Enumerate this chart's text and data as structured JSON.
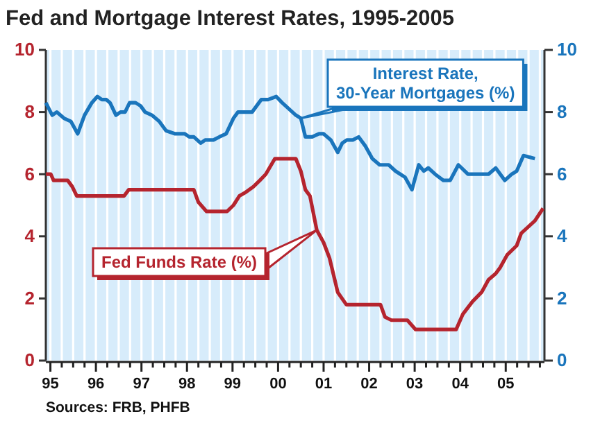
{
  "chart_data": {
    "type": "line",
    "title": "Fed and Mortgage Interest Rates, 1995-2005",
    "annotations": [
      "Sources: FRB, PHFB"
    ],
    "xlim": [
      1994.9,
      2005.85
    ],
    "ylim": [
      0,
      10
    ],
    "y2lim": [
      0,
      10
    ],
    "xticks": [
      {
        "value": 1995,
        "label": "95"
      },
      {
        "value": 1995.25,
        "label": null
      },
      {
        "value": 1995.5,
        "label": null
      },
      {
        "value": 1995.75,
        "label": null
      },
      {
        "value": 1996,
        "label": "96"
      },
      {
        "value": 1996.25,
        "label": null
      },
      {
        "value": 1996.5,
        "label": null
      },
      {
        "value": 1996.75,
        "label": null
      },
      {
        "value": 1997,
        "label": "97"
      },
      {
        "value": 1997.25,
        "label": null
      },
      {
        "value": 1997.5,
        "label": null
      },
      {
        "value": 1997.75,
        "label": null
      },
      {
        "value": 1998,
        "label": "98"
      },
      {
        "value": 1998.25,
        "label": null
      },
      {
        "value": 1998.5,
        "label": null
      },
      {
        "value": 1998.75,
        "label": null
      },
      {
        "value": 1999,
        "label": "99"
      },
      {
        "value": 1999.25,
        "label": null
      },
      {
        "value": 1999.5,
        "label": null
      },
      {
        "value": 1999.75,
        "label": null
      },
      {
        "value": 2000,
        "label": "00"
      },
      {
        "value": 2000.25,
        "label": null
      },
      {
        "value": 2000.5,
        "label": null
      },
      {
        "value": 2000.75,
        "label": null
      },
      {
        "value": 2001,
        "label": "01"
      },
      {
        "value": 2001.25,
        "label": null
      },
      {
        "value": 2001.5,
        "label": null
      },
      {
        "value": 2001.75,
        "label": null
      },
      {
        "value": 2002,
        "label": "02"
      },
      {
        "value": 2002.25,
        "label": null
      },
      {
        "value": 2002.5,
        "label": null
      },
      {
        "value": 2002.75,
        "label": null
      },
      {
        "value": 2003,
        "label": "03"
      },
      {
        "value": 2003.25,
        "label": null
      },
      {
        "value": 2003.5,
        "label": null
      },
      {
        "value": 2003.75,
        "label": null
      },
      {
        "value": 2004,
        "label": "04"
      },
      {
        "value": 2004.25,
        "label": null
      },
      {
        "value": 2004.5,
        "label": null
      },
      {
        "value": 2004.75,
        "label": null
      },
      {
        "value": 2005,
        "label": "05"
      },
      {
        "value": 2005.25,
        "label": null
      },
      {
        "value": 2005.5,
        "label": null
      },
      {
        "value": 2005.75,
        "label": null
      }
    ],
    "yticks": [
      0,
      2,
      4,
      6,
      8,
      10
    ],
    "y2ticks": [
      0,
      2,
      4,
      6,
      8,
      10
    ],
    "grid": "x",
    "legend": "top right",
    "marker": "none",
    "line_style": "solid",
    "series": [
      {
        "name": "Interest Rate, 30-Year Mortgages (%)",
        "color": "#1a75bc",
        "axis": "y2",
        "x": [
          1994.9,
          1995.04,
          1995.14,
          1995.3,
          1995.45,
          1995.6,
          1995.75,
          1995.91,
          1996.03,
          1996.13,
          1996.23,
          1996.31,
          1996.44,
          1996.54,
          1996.64,
          1996.74,
          1996.87,
          1996.98,
          1997.08,
          1997.23,
          1997.39,
          1997.54,
          1997.74,
          1997.95,
          1998.05,
          1998.15,
          1998.3,
          1998.4,
          1998.58,
          1998.71,
          1998.86,
          1999.02,
          1999.12,
          1999.27,
          1999.43,
          1999.58,
          1999.63,
          1999.78,
          1999.96,
          2000.09,
          2000.24,
          2000.39,
          2000.5,
          2000.6,
          2000.75,
          2000.9,
          2001.0,
          2001.16,
          2001.31,
          2001.41,
          2001.51,
          2001.64,
          2001.77,
          2001.92,
          2002.07,
          2002.23,
          2002.43,
          2002.58,
          2002.79,
          2002.94,
          2003.09,
          2003.2,
          2003.3,
          2003.45,
          2003.63,
          2003.78,
          2003.96,
          2004.17,
          2004.37,
          2004.62,
          2004.78,
          2004.98,
          2005.13,
          2005.24,
          2005.39,
          2005.64
        ],
        "values": [
          8.3,
          7.9,
          8.0,
          7.8,
          7.7,
          7.3,
          7.9,
          8.3,
          8.5,
          8.4,
          8.4,
          8.3,
          7.9,
          8.0,
          8.0,
          8.3,
          8.3,
          8.2,
          8.0,
          7.9,
          7.7,
          7.4,
          7.3,
          7.3,
          7.2,
          7.2,
          7.0,
          7.1,
          7.1,
          7.2,
          7.3,
          7.8,
          8.0,
          8.0,
          8.0,
          8.3,
          8.4,
          8.4,
          8.5,
          8.3,
          8.1,
          7.9,
          7.8,
          7.2,
          7.2,
          7.3,
          7.3,
          7.1,
          6.7,
          7.0,
          7.1,
          7.1,
          7.2,
          6.9,
          6.5,
          6.3,
          6.3,
          6.1,
          5.9,
          5.5,
          6.3,
          6.1,
          6.2,
          6.0,
          5.8,
          5.8,
          6.3,
          6.0,
          6.0,
          6.0,
          6.2,
          5.8,
          6.0,
          6.1,
          6.6,
          6.5
        ]
      },
      {
        "name": "Fed Funds Rate (%)",
        "color": "#b5242e",
        "axis": "y",
        "x": [
          1994.9,
          1995.01,
          1995.07,
          1995.38,
          1995.48,
          1995.58,
          1996.62,
          1996.72,
          1998.15,
          1998.25,
          1998.43,
          1998.88,
          1999.02,
          1999.15,
          1999.27,
          1999.46,
          1999.6,
          1999.73,
          1999.93,
          2000.39,
          2000.5,
          2000.6,
          2000.7,
          2000.85,
          2001.0,
          2001.13,
          2001.31,
          2001.5,
          2002.25,
          2002.35,
          2002.49,
          2002.84,
          2003.02,
          2003.91,
          2004.06,
          2004.27,
          2004.47,
          2004.62,
          2004.78,
          2004.88,
          2005.03,
          2005.24,
          2005.34,
          2005.49,
          2005.64,
          2005.82
        ],
        "values": [
          6.0,
          6.0,
          5.8,
          5.8,
          5.6,
          5.3,
          5.3,
          5.5,
          5.5,
          5.1,
          4.8,
          4.8,
          5.0,
          5.3,
          5.4,
          5.6,
          5.8,
          6.0,
          6.5,
          6.5,
          6.1,
          5.5,
          5.3,
          4.2,
          3.8,
          3.3,
          2.2,
          1.8,
          1.8,
          1.4,
          1.3,
          1.3,
          1.0,
          1.0,
          1.5,
          1.9,
          2.2,
          2.6,
          2.8,
          3.0,
          3.4,
          3.7,
          4.1,
          4.3,
          4.5,
          4.9
        ]
      }
    ]
  }
}
